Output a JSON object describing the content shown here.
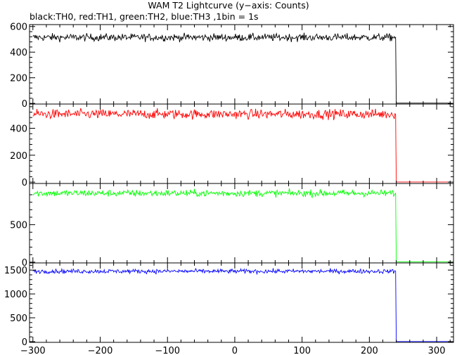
{
  "title": "WAM T2 Lightcurve (y−axis: Counts)",
  "subtitle": "black:TH0, red:TH1, green:TH2, blue:TH3 ,1bin = 1s",
  "chart_data": {
    "type": "line",
    "xlim": [
      -305,
      325
    ],
    "x_ticks": [
      -300,
      -200,
      -100,
      0,
      100,
      200,
      300
    ],
    "x_tick_labels": [
      "−300",
      "−200",
      "−100",
      "0",
      "100",
      "200",
      "300"
    ],
    "x_range_data": [
      -300,
      322
    ],
    "drop_x": 240,
    "bin_seconds": 1,
    "panels": [
      {
        "name": "TH0",
        "color": "#000000",
        "ylim": [
          -5,
          615
        ],
        "y_ticks": [
          0,
          200,
          400,
          600
        ],
        "y_tick_labels": [
          "0",
          "200",
          "400",
          "600"
        ],
        "level": 515,
        "noise": 45,
        "transition_value": 270,
        "post_value": 2
      },
      {
        "name": "TH1",
        "color": "#ff0000",
        "ylim": [
          -10,
          580
        ],
        "y_ticks": [
          0,
          200,
          400
        ],
        "y_tick_labels": [
          "0",
          "200",
          "400"
        ],
        "level": 505,
        "noise": 55,
        "transition_value": 240,
        "post_value": 1
      },
      {
        "name": "TH2",
        "color": "#00ff00",
        "ylim": [
          -10,
          1050
        ],
        "y_ticks": [
          0,
          500
        ],
        "y_tick_labels": [
          "0",
          "500"
        ],
        "level": 920,
        "noise": 70,
        "transition_value": 450,
        "post_value": 3
      },
      {
        "name": "TH3",
        "color": "#0000ff",
        "ylim": [
          -15,
          1650
        ],
        "y_ticks": [
          0,
          500,
          1000,
          1500
        ],
        "y_tick_labels": [
          "0",
          "500",
          "1000",
          "1500"
        ],
        "level": 1475,
        "noise": 70,
        "transition_value": 720,
        "post_value": 3
      }
    ]
  }
}
